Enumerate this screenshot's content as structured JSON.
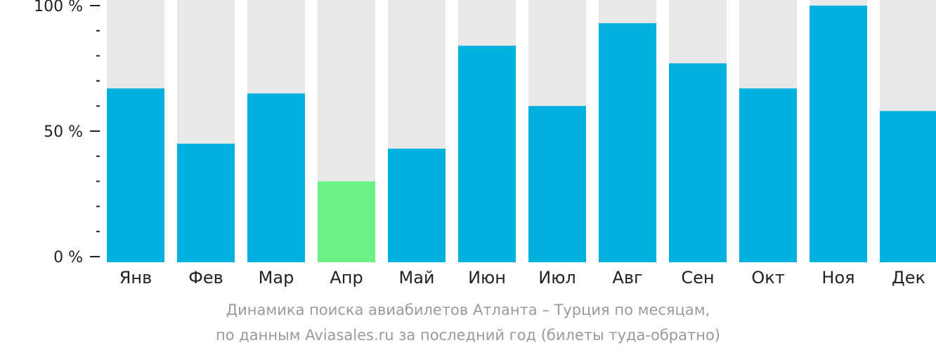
{
  "chart_data": {
    "type": "bar",
    "categories": [
      "Янв",
      "Фев",
      "Мар",
      "Апр",
      "Май",
      "Июн",
      "Июл",
      "Авг",
      "Сен",
      "Окт",
      "Ноя",
      "Дек"
    ],
    "values": [
      67,
      45,
      65,
      30,
      43,
      84,
      60,
      93,
      77,
      67,
      100,
      58
    ],
    "highlight_index": 3,
    "ylim": [
      0,
      100
    ],
    "yticks": [
      {
        "value": 100,
        "label": "100 %"
      },
      {
        "value": 50,
        "label": "50 %"
      },
      {
        "value": 0,
        "label": "0 %"
      }
    ],
    "minor_tick_step": 10,
    "grid": false,
    "colors": {
      "bar": "#00b0dd",
      "highlight": "#6cf187",
      "track": "#e8e8e8",
      "axis": "#222222"
    }
  },
  "caption": {
    "line1": "Динамика поиска авиабилетов Атланта – Турция по месяцам,",
    "line2": "по данным Aviasales.ru за последний год (билеты туда-обратно)"
  }
}
